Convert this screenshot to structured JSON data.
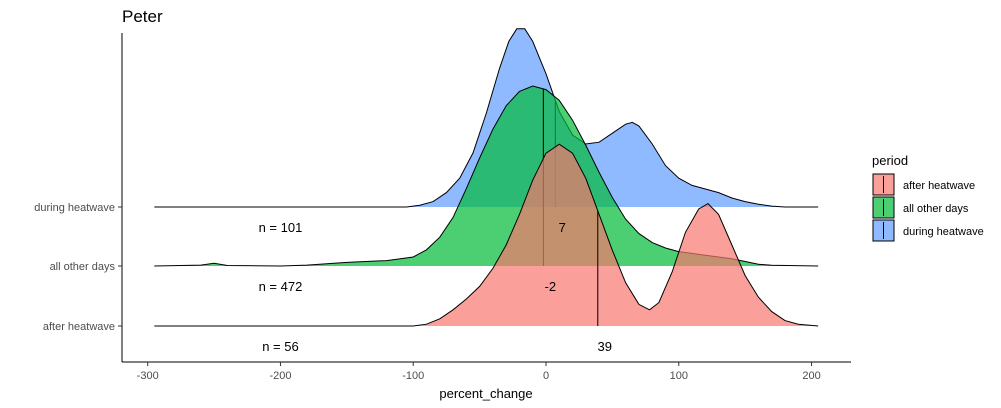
{
  "chart_data": {
    "type": "ridgeline-density",
    "title": "Peter",
    "xlabel": "percent_change",
    "ylabel": "",
    "xlim": [
      -300,
      205
    ],
    "x_ticks": [
      -300,
      -200,
      -100,
      0,
      100,
      200
    ],
    "categories": [
      "after heatwave",
      "all other days",
      "during heatwave"
    ],
    "grid": false,
    "legend": {
      "title": "period",
      "position": "right",
      "entries": [
        "after heatwave",
        "all other days",
        "during heatwave"
      ]
    },
    "series": [
      {
        "name": "after heatwave",
        "color": "#F8766D",
        "n_label": "n = 56",
        "n": 56,
        "median_label": "39",
        "median": 39,
        "x_range": [
          -295,
          205
        ],
        "density": [
          [
            -295,
            0
          ],
          [
            -100,
            0
          ],
          [
            -90,
            0.01
          ],
          [
            -80,
            0.04
          ],
          [
            -70,
            0.09
          ],
          [
            -60,
            0.15
          ],
          [
            -50,
            0.22
          ],
          [
            -40,
            0.32
          ],
          [
            -30,
            0.45
          ],
          [
            -20,
            0.62
          ],
          [
            -10,
            0.81
          ],
          [
            0,
            0.96
          ],
          [
            10,
            1.01
          ],
          [
            20,
            0.96
          ],
          [
            30,
            0.82
          ],
          [
            40,
            0.62
          ],
          [
            50,
            0.42
          ],
          [
            60,
            0.24
          ],
          [
            70,
            0.12
          ],
          [
            78,
            0.09
          ],
          [
            85,
            0.13
          ],
          [
            95,
            0.3
          ],
          [
            105,
            0.52
          ],
          [
            115,
            0.65
          ],
          [
            122,
            0.68
          ],
          [
            130,
            0.62
          ],
          [
            140,
            0.45
          ],
          [
            150,
            0.28
          ],
          [
            160,
            0.16
          ],
          [
            170,
            0.08
          ],
          [
            180,
            0.03
          ],
          [
            190,
            0.01
          ],
          [
            205,
            0
          ]
        ]
      },
      {
        "name": "all other days",
        "color": "#00BA38",
        "n_label": "n = 472",
        "n": 472,
        "median_label": "-2",
        "median": -2,
        "x_range": [
          -295,
          205
        ],
        "density": [
          [
            -295,
            0
          ],
          [
            -260,
            0.005
          ],
          [
            -250,
            0.015
          ],
          [
            -240,
            0.003
          ],
          [
            -200,
            0
          ],
          [
            -180,
            0.005
          ],
          [
            -150,
            0.02
          ],
          [
            -120,
            0.03
          ],
          [
            -100,
            0.05
          ],
          [
            -90,
            0.09
          ],
          [
            -80,
            0.16
          ],
          [
            -70,
            0.27
          ],
          [
            -60,
            0.43
          ],
          [
            -50,
            0.6
          ],
          [
            -40,
            0.76
          ],
          [
            -30,
            0.89
          ],
          [
            -20,
            0.97
          ],
          [
            -10,
            1.0
          ],
          [
            0,
            0.98
          ],
          [
            10,
            0.92
          ],
          [
            20,
            0.81
          ],
          [
            30,
            0.67
          ],
          [
            40,
            0.52
          ],
          [
            50,
            0.38
          ],
          [
            60,
            0.26
          ],
          [
            70,
            0.18
          ],
          [
            80,
            0.13
          ],
          [
            90,
            0.1
          ],
          [
            100,
            0.08
          ],
          [
            110,
            0.07
          ],
          [
            120,
            0.06
          ],
          [
            130,
            0.05
          ],
          [
            140,
            0.04
          ],
          [
            150,
            0.025
          ],
          [
            160,
            0.01
          ],
          [
            170,
            0.004
          ],
          [
            205,
            0
          ]
        ]
      },
      {
        "name": "during heatwave",
        "color": "#619CFF",
        "n_label": "n = 101",
        "n": 101,
        "median_label": "7",
        "median": 7,
        "x_range": [
          -295,
          205
        ],
        "density": [
          [
            -295,
            0
          ],
          [
            -105,
            0
          ],
          [
            -95,
            0.01
          ],
          [
            -85,
            0.03
          ],
          [
            -75,
            0.08
          ],
          [
            -65,
            0.16
          ],
          [
            -55,
            0.3
          ],
          [
            -45,
            0.52
          ],
          [
            -35,
            0.77
          ],
          [
            -28,
            0.92
          ],
          [
            -22,
            0.99
          ],
          [
            -16,
            0.99
          ],
          [
            -10,
            0.92
          ],
          [
            0,
            0.74
          ],
          [
            10,
            0.53
          ],
          [
            20,
            0.4
          ],
          [
            30,
            0.35
          ],
          [
            40,
            0.36
          ],
          [
            50,
            0.41
          ],
          [
            60,
            0.46
          ],
          [
            65,
            0.47
          ],
          [
            70,
            0.45
          ],
          [
            80,
            0.35
          ],
          [
            90,
            0.23
          ],
          [
            100,
            0.16
          ],
          [
            110,
            0.12
          ],
          [
            120,
            0.1
          ],
          [
            130,
            0.08
          ],
          [
            140,
            0.05
          ],
          [
            150,
            0.03
          ],
          [
            160,
            0.015
          ],
          [
            170,
            0.005
          ],
          [
            180,
            0
          ],
          [
            205,
            0
          ]
        ]
      }
    ]
  }
}
